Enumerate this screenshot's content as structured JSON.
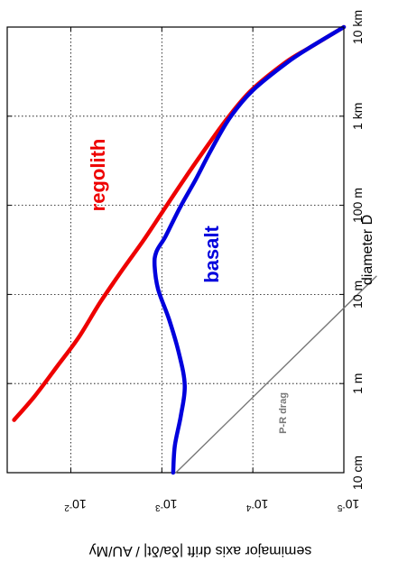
{
  "chart_data": {
    "type": "line",
    "orientation": "rotated-90-clockwise",
    "xlabel": "diameter D",
    "ylabel": "semimajor axis drift |δa/δt| / AU/My",
    "xscale": "log",
    "yscale": "log",
    "xlim_m": [
      0.1,
      10000
    ],
    "ylim": [
      1e-05,
      0.05
    ],
    "grid": true,
    "x_ticks": [
      {
        "value_m": 0.1,
        "label": "10 cm"
      },
      {
        "value_m": 1,
        "label": "1 m"
      },
      {
        "value_m": 10,
        "label": "10 m"
      },
      {
        "value_m": 100,
        "label": "100 m"
      },
      {
        "value_m": 1000,
        "label": "1 km"
      },
      {
        "value_m": 10000,
        "label": "10 km"
      }
    ],
    "y_ticks": [
      {
        "value": 0.01,
        "base": "10",
        "exp": "-2"
      },
      {
        "value": 0.001,
        "base": "10",
        "exp": "-3"
      },
      {
        "value": 0.0001,
        "base": "10",
        "exp": "-4"
      },
      {
        "value": 1e-05,
        "base": "10",
        "exp": "-5"
      }
    ],
    "series": [
      {
        "name": "regolith",
        "color": "#ee0000",
        "points": [
          [
            0.39,
            0.042
          ],
          [
            0.72,
            0.025
          ],
          [
            1.58,
            0.014
          ],
          [
            3.3,
            0.0082
          ],
          [
            8.3,
            0.0047
          ],
          [
            19,
            0.0027
          ],
          [
            40,
            0.0016
          ],
          [
            85,
            0.00098
          ],
          [
            190,
            0.00058
          ],
          [
            400,
            0.00035
          ],
          [
            950,
            0.00019
          ],
          [
            1950,
            0.000104
          ],
          [
            4000,
            4.4e-05
          ],
          [
            6000,
            2.3e-05
          ],
          [
            10000,
            1e-05
          ]
        ]
      },
      {
        "name": "basalt",
        "color": "#0000dd",
        "points": [
          [
            0.1,
            0.00075
          ],
          [
            0.2,
            0.00072
          ],
          [
            0.43,
            0.00062
          ],
          [
            0.95,
            0.00056
          ],
          [
            2.2,
            0.00065
          ],
          [
            5.2,
            0.00083
          ],
          [
            11.5,
            0.0011
          ],
          [
            21,
            0.0012
          ],
          [
            30,
            0.00115
          ],
          [
            45,
            0.00091
          ],
          [
            95,
            0.00063
          ],
          [
            190,
            0.00043
          ],
          [
            410,
            0.00029
          ],
          [
            950,
            0.00018
          ],
          [
            1950,
            0.0001
          ],
          [
            4000,
            4.2e-05
          ],
          [
            6000,
            2.3e-05
          ],
          [
            10000,
            1e-05
          ]
        ]
      },
      {
        "name": "P-R drag",
        "color": "#777777",
        "points": [
          [
            0.1,
            0.0007
          ],
          [
            16,
            4.4e-06
          ]
        ]
      }
    ],
    "annotations": {
      "regolith": "regolith",
      "basalt": "basalt",
      "pr_drag": "P-R drag"
    }
  }
}
